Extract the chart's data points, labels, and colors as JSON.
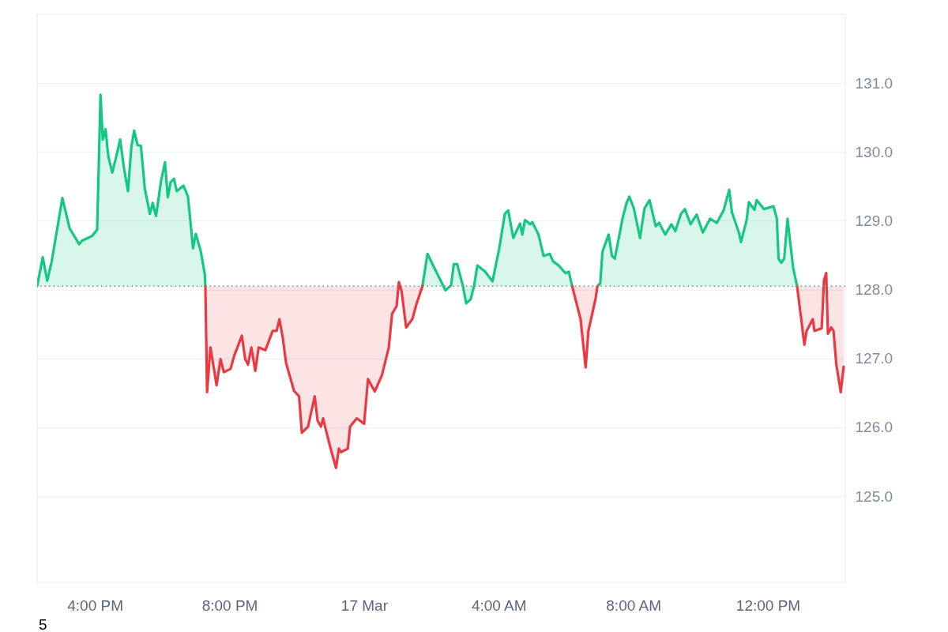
{
  "chart_data": {
    "type": "area",
    "xlim": [
      "--03-16T14:17",
      "--03-17T14:18"
    ],
    "xticks": [
      {
        "value": "--03-16T16:00",
        "label": "4:00 PM"
      },
      {
        "value": "--03-16T20:00",
        "label": "8:00 PM"
      },
      {
        "value": "--03-17T00:00",
        "label": "17 Mar"
      },
      {
        "value": "--03-17T04:00",
        "label": "4:00 AM"
      },
      {
        "value": "--03-17T08:00",
        "label": "8:00 AM"
      },
      {
        "value": "--03-17T12:00",
        "label": "12:00 PM"
      }
    ],
    "ylim": [
      123.75,
      132.0
    ],
    "yticks": [
      {
        "value": 125,
        "label": "125.0"
      },
      {
        "value": 126,
        "label": "126.0"
      },
      {
        "value": 127,
        "label": "127.0"
      },
      {
        "value": 128,
        "label": "128.0"
      },
      {
        "value": 129,
        "label": "129.0"
      },
      {
        "value": 130,
        "label": "130.0"
      },
      {
        "value": 131,
        "label": "131.0"
      }
    ],
    "grid": "y",
    "ref_lines": [
      {
        "axis": "y",
        "value": 128.05,
        "color": "#808a9d",
        "line_style": "dotted"
      }
    ],
    "annotations": [
      "5"
    ],
    "series": [
      {
        "color": "#16c784",
        "x": [
          "--03-16T14:17",
          "--03-16T14:27",
          "--03-16T14:35",
          "--03-16T14:43",
          "--03-16T15:02",
          "--03-16T15:15",
          "--03-16T15:32",
          "--03-16T15:37",
          "--03-16T15:55",
          "--03-16T16:04",
          "--03-16T16:10",
          "--03-16T16:14",
          "--03-16T16:19",
          "--03-16T16:24",
          "--03-16T16:31",
          "--03-16T16:38",
          "--03-16T16:45",
          "--03-16T16:52",
          "--03-16T16:59",
          "--03-16T17:05",
          "--03-16T17:10",
          "--03-16T17:16",
          "--03-16T17:22",
          "--03-16T17:29",
          "--03-16T17:38",
          "--03-16T17:43",
          "--03-16T17:49",
          "--03-16T17:58",
          "--03-16T18:05",
          "--03-16T18:10",
          "--03-16T18:15",
          "--03-16T18:21",
          "--03-16T18:26",
          "--03-16T18:38",
          "--03-16T18:46",
          "--03-16T18:55",
          "--03-16T19:00",
          "--03-16T19:09",
          "--03-16T19:16",
          "--03-16T19:17",
          "--03-16T19:20",
          "--03-17T01:44",
          "--03-17T01:53",
          "--03-17T02:05",
          "--03-17T02:16",
          "--03-17T02:25",
          "--03-17T02:35",
          "--03-17T02:40",
          "--03-17T02:46",
          "--03-17T02:56",
          "--03-17T03:02",
          "--03-17T03:10",
          "--03-17T03:16",
          "--03-17T03:22",
          "--03-17T03:36",
          "--03-17T03:49",
          "--03-17T04:01",
          "--03-17T04:11",
          "--03-17T04:17",
          "--03-17T04:26",
          "--03-17T04:38",
          "--03-17T04:42",
          "--03-17T04:47",
          "--03-17T04:56",
          "--03-17T05:00",
          "--03-17T05:11",
          "--03-17T05:20",
          "--03-17T05:31",
          "--03-17T05:37",
          "--03-17T05:47",
          "--03-17T05:59",
          "--03-17T06:05",
          "--03-17T06:11",
          "--03-17T06:26",
          "--03-17T06:56",
          "--03-17T07:01",
          "--03-17T07:05",
          "--03-17T07:16",
          "--03-17T07:22",
          "--03-17T07:27",
          "--03-17T07:41",
          "--03-17T07:48",
          "--03-17T07:53",
          "--03-17T08:01",
          "--03-17T08:12",
          "--03-17T08:20",
          "--03-17T08:29",
          "--03-17T08:40",
          "--03-17T08:46",
          "--03-17T08:57",
          "--03-17T09:08",
          "--03-17T09:15",
          "--03-17T09:25",
          "--03-17T09:32",
          "--03-17T09:42",
          "--03-17T09:53",
          "--03-17T10:04",
          "--03-17T10:17",
          "--03-17T10:29",
          "--03-17T10:41",
          "--03-17T10:51",
          "--03-17T10:56",
          "--03-17T11:09",
          "--03-17T11:12",
          "--03-17T11:22",
          "--03-17T11:26",
          "--03-17T11:36",
          "--03-17T11:40",
          "--03-17T11:53",
          "--03-17T12:10",
          "--03-17T12:16",
          "--03-17T12:19",
          "--03-17T12:24",
          "--03-17T12:29",
          "--03-17T12:35",
          "--03-17T12:45",
          "--03-17T12:52"
        ],
        "values": [
          128.05,
          128.47,
          128.13,
          128.41,
          129.33,
          128.89,
          128.66,
          128.71,
          128.78,
          128.87,
          130.83,
          130.18,
          130.33,
          129.93,
          129.7,
          129.93,
          130.18,
          129.76,
          129.43,
          130.07,
          130.31,
          130.1,
          130.09,
          129.47,
          129.1,
          129.26,
          129.07,
          129.58,
          129.85,
          129.34,
          129.56,
          129.61,
          129.43,
          129.51,
          129.35,
          128.6,
          128.81,
          128.55,
          128.22,
          128.05,
          null,
          128.05,
          128.52,
          128.32,
          128.14,
          127.99,
          128.06,
          128.37,
          128.37,
          128.06,
          127.8,
          127.86,
          128.05,
          128.35,
          128.26,
          128.12,
          128.6,
          129.1,
          129.15,
          128.75,
          128.96,
          128.8,
          129.01,
          128.95,
          128.98,
          128.8,
          128.49,
          128.52,
          128.41,
          128.35,
          128.24,
          128.26,
          128.05,
          null,
          128.05,
          128.09,
          128.55,
          128.8,
          128.49,
          128.45,
          129.04,
          129.26,
          129.35,
          129.18,
          128.75,
          129.18,
          129.3,
          128.92,
          128.97,
          128.8,
          128.95,
          128.85,
          129.1,
          129.17,
          128.95,
          129.09,
          128.83,
          129.03,
          128.97,
          129.15,
          129.45,
          129.12,
          128.81,
          128.69,
          129.01,
          129.27,
          129.16,
          129.3,
          129.17,
          129.21,
          129.03,
          128.45,
          128.39,
          128.45,
          129.03,
          128.32,
          128.05
        ]
      },
      {
        "type": "line",
        "color": "#ea3943",
        "x": [
          "--03-16T19:17",
          "--03-16T19:20",
          "--03-16T19:26",
          "--03-16T19:37",
          "--03-16T19:44",
          "--03-16T19:50",
          "--03-16T20:02",
          "--03-16T20:08",
          "--03-16T20:22",
          "--03-16T20:28",
          "--03-16T20:33",
          "--03-16T20:39",
          "--03-16T20:46",
          "--03-16T20:52",
          "--03-16T21:04",
          "--03-16T21:17",
          "--03-16T21:24",
          "--03-16T21:29",
          "--03-16T21:35",
          "--03-16T21:41",
          "--03-16T21:55",
          "--03-16T22:04",
          "--03-16T22:09",
          "--03-16T22:20",
          "--03-16T22:32",
          "--03-16T22:37",
          "--03-16T22:43",
          "--03-16T22:47",
          "--03-16T22:51",
          "--03-16T23:02",
          "--03-16T23:10",
          "--03-16T23:15",
          "--03-16T23:19",
          "--03-16T23:31",
          "--03-16T23:35",
          "--03-16T23:47",
          "--03-17T00:00",
          "--03-17T00:07",
          "--03-17T00:19",
          "--03-17T00:32",
          "--03-17T00:44",
          "--03-17T00:50",
          "--03-17T00:58",
          "--03-17T01:02",
          "--03-17T01:07",
          "--03-17T01:15",
          "--03-17T01:26",
          "--03-17T01:33",
          "--03-17T01:44",
          "--03-17T01:53",
          "--03-17T06:11",
          "--03-17T06:26",
          "--03-17T06:35",
          "--03-17T06:40",
          "--03-17T06:53",
          "--03-17T06:56",
          "--03-17T07:01",
          "--03-17T12:52",
          "--03-17T12:59",
          "--03-17T13:05",
          "--03-17T13:09",
          "--03-17T13:20",
          "--03-17T13:23",
          "--03-17T13:36",
          "--03-17T13:40",
          "--03-17T13:44",
          "--03-17T13:47",
          "--03-17T13:53",
          "--03-17T13:57",
          "--03-17T14:02",
          "--03-17T14:10",
          "--03-17T14:15"
        ],
        "values": [
          128.05,
          126.51,
          127.16,
          126.61,
          126.99,
          126.8,
          126.85,
          127.03,
          127.33,
          126.99,
          126.91,
          127.16,
          126.82,
          127.16,
          127.12,
          127.4,
          127.4,
          127.57,
          127.3,
          126.93,
          126.53,
          126.45,
          125.92,
          126.01,
          126.45,
          126.1,
          126.01,
          126.13,
          125.99,
          125.64,
          125.41,
          125.69,
          125.64,
          125.69,
          126.01,
          126.13,
          126.05,
          126.7,
          126.52,
          126.76,
          127.16,
          127.65,
          127.76,
          128.11,
          127.97,
          127.45,
          127.57,
          127.78,
          128.05,
          null,
          128.05,
          127.57,
          126.87,
          127.4,
          127.88,
          128.05,
          null,
          128.05,
          127.6,
          127.2,
          127.4,
          127.57,
          127.4,
          127.44,
          128.14,
          128.24,
          127.36,
          127.45,
          127.4,
          126.91,
          126.51,
          126.88
        ],
        "lower": [
          128.05,
          126.51,
          127.16,
          126.61,
          126.99,
          126.8,
          126.85,
          127.03,
          127.33,
          126.99,
          126.91,
          127.16,
          126.82,
          127.16,
          127.12,
          127.4,
          127.4,
          127.57,
          127.3,
          126.93,
          126.53,
          126.45,
          125.92,
          126.01,
          126.45,
          126.1,
          126.01,
          126.13,
          125.99,
          125.64,
          125.41,
          125.69,
          125.64,
          125.69,
          126.01,
          126.13,
          126.05,
          126.7,
          126.52,
          126.76,
          127.16,
          127.65,
          127.76,
          128.11,
          127.97,
          127.45,
          127.57,
          127.78,
          128.05,
          null,
          128.05,
          127.57,
          126.87,
          127.4,
          127.88,
          128.05,
          null,
          128.05,
          127.6,
          127.2,
          127.4,
          127.57,
          127.4,
          127.44,
          128.14,
          128.24,
          127.36,
          127.45,
          127.4,
          126.91,
          126.51,
          126.88
        ],
        "upper": [
          128.05,
          128.05,
          128.05,
          128.05,
          128.05,
          128.05,
          128.05,
          128.05,
          128.05,
          128.05,
          128.05,
          128.05,
          128.05,
          128.05,
          128.05,
          128.05,
          128.05,
          128.05,
          128.05,
          128.05,
          128.05,
          128.05,
          128.05,
          128.05,
          128.05,
          128.05,
          128.05,
          128.05,
          128.05,
          128.05,
          128.05,
          128.05,
          128.05,
          128.05,
          128.05,
          128.05,
          128.05,
          128.05,
          128.05,
          128.05,
          128.05,
          128.05,
          128.05,
          128.05,
          128.05,
          128.05,
          128.05,
          128.05,
          128.05,
          null,
          128.05,
          128.05,
          128.05,
          128.05,
          128.05,
          128.05,
          null,
          128.05,
          128.05,
          128.05,
          128.05,
          128.05,
          128.05,
          128.05,
          128.05,
          128.05,
          128.05,
          128.05,
          128.05,
          128.05,
          128.05,
          128.05
        ]
      }
    ]
  }
}
